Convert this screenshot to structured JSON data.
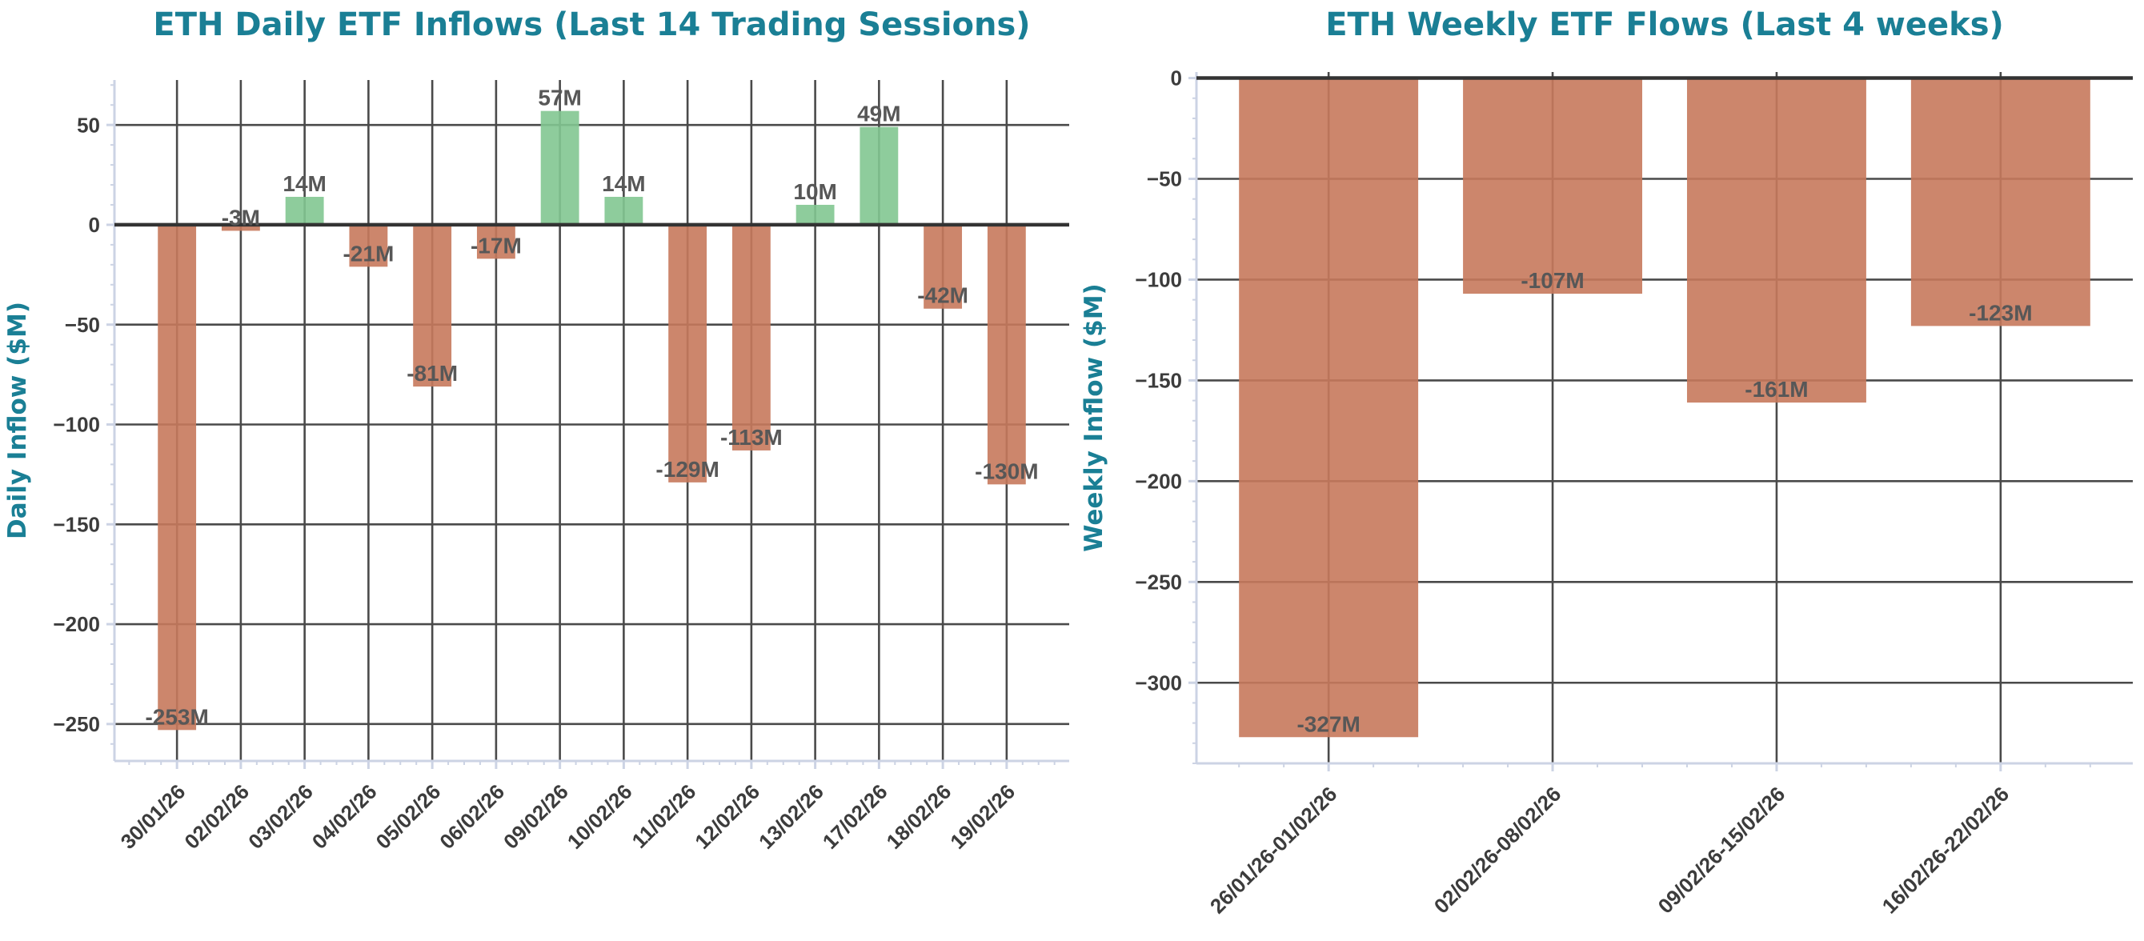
{
  "style": {
    "background": "#ffffff",
    "title_color": "#1a7f95",
    "axis_label_color": "#1a7f95",
    "tick_label_color": "#3c3c3c",
    "value_label_color": "#575757",
    "grid_color": "#4a4a4a",
    "zero_line_color": "#333333",
    "spine_color": "#ccd3e4",
    "positive_bar_color": "#82c791",
    "negative_bar_color": "#c7795c"
  },
  "chart_data": [
    {
      "id": "daily",
      "type": "bar",
      "title": "ETH Daily ETF Inflows (Last 14 Trading Sessions)",
      "xlabel": "",
      "ylabel": "Daily Inflow ($M)",
      "categories": [
        "30/01/26",
        "02/02/26",
        "03/02/26",
        "04/02/26",
        "05/02/26",
        "06/02/26",
        "09/02/26",
        "10/02/26",
        "11/02/26",
        "12/02/26",
        "13/02/26",
        "17/02/26",
        "18/02/26",
        "19/02/26"
      ],
      "values": [
        -253,
        -3,
        14,
        -21,
        -81,
        -17,
        57,
        14,
        -129,
        -113,
        10,
        49,
        -42,
        -130
      ],
      "value_labels": [
        "-253M",
        "-3M",
        "14M",
        "-21M",
        "-81M",
        "-17M",
        "57M",
        "14M",
        "-129M",
        "-113M",
        "10M",
        "49M",
        "-42M",
        "-130M"
      ],
      "yticks": [
        50,
        0,
        -50,
        -100,
        -150,
        -200,
        -250
      ],
      "ylim": [
        -268.5,
        72.5
      ],
      "xlim": [
        -0.98,
        13.98
      ],
      "bar_width": 0.6,
      "x_minor_step": 0.25,
      "y_minor_step": 10,
      "grid": "both",
      "legend": "none"
    },
    {
      "id": "weekly",
      "type": "bar",
      "title": "ETH Weekly ETF Flows (Last 4 weeks)",
      "xlabel": "",
      "ylabel": "Weekly Inflow ($M)",
      "categories": [
        "26/01/26-01/02/26",
        "02/02/26-08/02/26",
        "09/02/26-15/02/26",
        "16/02/26-22/02/26"
      ],
      "values": [
        -327,
        -107,
        -161,
        -123
      ],
      "value_labels": [
        "-327M",
        "-107M",
        "-161M",
        "-123M"
      ],
      "yticks": [
        0,
        -50,
        -100,
        -150,
        -200,
        -250,
        -300
      ],
      "ylim": [
        -340,
        3
      ],
      "xlim": [
        -0.59,
        3.59
      ],
      "bar_width": 0.8,
      "x_minor_step": 0.2,
      "y_minor_step": 10,
      "grid": "both",
      "legend": "none"
    }
  ]
}
